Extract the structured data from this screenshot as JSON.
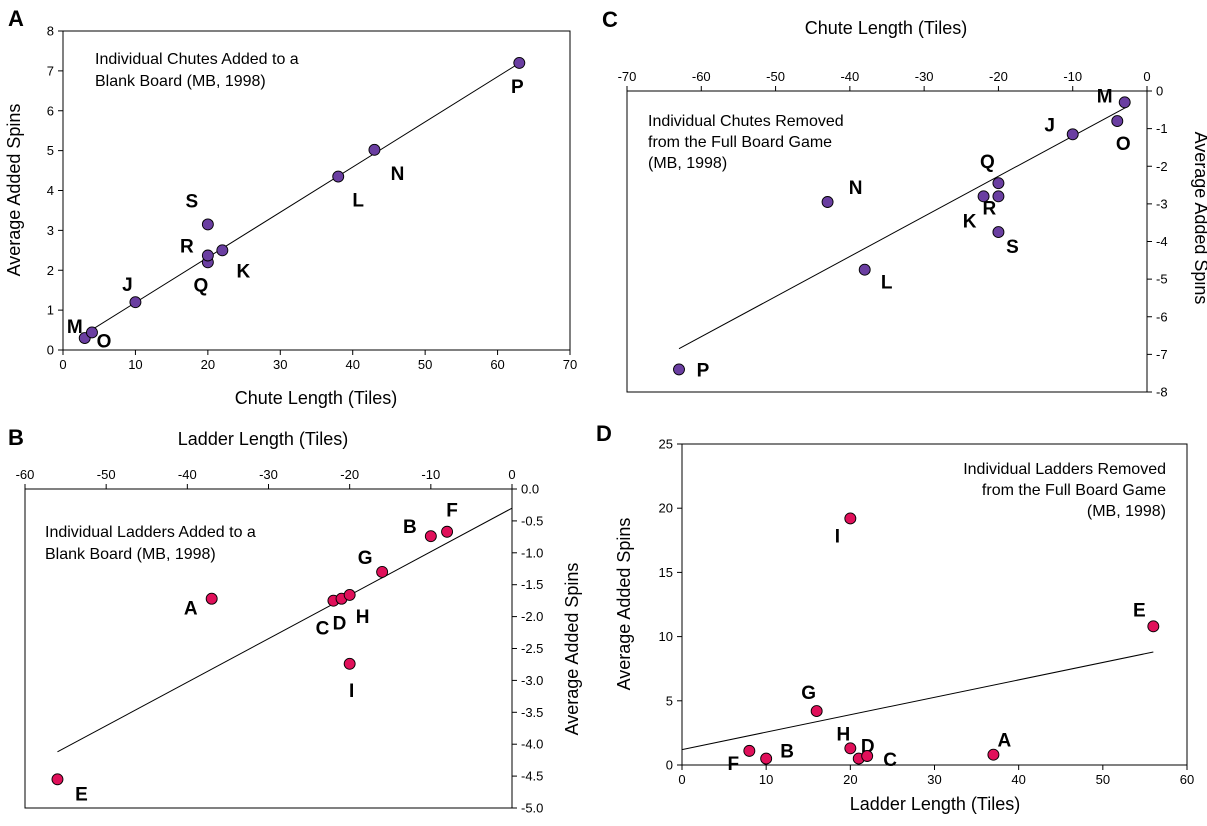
{
  "chart_data": [
    {
      "panel": "A",
      "type": "scatter",
      "annotation": [
        "Individual Chutes Added to a",
        "Blank Board (MB, 1998)"
      ],
      "xlabel": "Chute Length (Tiles)",
      "ylabel": "Average Added Spins",
      "x_axis_position": "bottom",
      "y_axis_position": "left",
      "xlim": [
        0,
        70
      ],
      "ylim": [
        0,
        8
      ],
      "xticks": [
        0,
        10,
        20,
        30,
        40,
        50,
        60,
        70
      ],
      "yticks": [
        0,
        1,
        2,
        3,
        4,
        5,
        6,
        7,
        8
      ],
      "xtick_labels": [
        "0",
        "10",
        "20",
        "30",
        "40",
        "50",
        "60",
        "70"
      ],
      "ytick_labels": [
        "0",
        "1",
        "2",
        "3",
        "4",
        "5",
        "6",
        "7",
        "8"
      ],
      "marker_color": "#6a3ea1",
      "grid": false,
      "trendline": [
        [
          2.5,
          0.34
        ],
        [
          63.5,
          7.25
        ]
      ],
      "points": [
        {
          "label": "M",
          "x": 3,
          "y": 0.3
        },
        {
          "label": "O",
          "x": 4,
          "y": 0.44
        },
        {
          "label": "J",
          "x": 10,
          "y": 1.2
        },
        {
          "label": "Q",
          "x": 20,
          "y": 2.2
        },
        {
          "label": "R",
          "x": 20,
          "y": 2.37
        },
        {
          "label": "S",
          "x": 20,
          "y": 3.15
        },
        {
          "label": "K",
          "x": 22,
          "y": 2.5
        },
        {
          "label": "L",
          "x": 38,
          "y": 4.35
        },
        {
          "label": "N",
          "x": 43,
          "y": 5.02
        },
        {
          "label": "P",
          "x": 63,
          "y": 7.2
        }
      ]
    },
    {
      "panel": "C",
      "type": "scatter",
      "annotation": [
        "Individual Chutes Removed",
        "from the Full Board Game",
        "(MB, 1998)"
      ],
      "xlabel": "Chute Length (Tiles)",
      "ylabel": "Average Added Spins",
      "x_axis_position": "top",
      "y_axis_position": "right",
      "xlim": [
        -70,
        0
      ],
      "ylim": [
        -8,
        0
      ],
      "xticks": [
        -70,
        -60,
        -50,
        -40,
        -30,
        -20,
        -10,
        0
      ],
      "yticks": [
        0,
        -1,
        -2,
        -3,
        -4,
        -5,
        -6,
        -7,
        -8
      ],
      "xtick_labels": [
        "-70",
        "-60",
        "-50",
        "-40",
        "-30",
        "-20",
        "-10",
        "0"
      ],
      "ytick_labels": [
        "0",
        "-1",
        "-2",
        "-3",
        "-4",
        "-5",
        "-6",
        "-7",
        "-8"
      ],
      "marker_color": "#6a3ea1",
      "grid": false,
      "trendline": [
        [
          -63,
          -6.85
        ],
        [
          -2.5,
          -0.4
        ]
      ],
      "points": [
        {
          "label": "M",
          "x": -3,
          "y": -0.3
        },
        {
          "label": "O",
          "x": -4,
          "y": -0.8
        },
        {
          "label": "J",
          "x": -10,
          "y": -1.15
        },
        {
          "label": "Q",
          "x": -20,
          "y": -2.45
        },
        {
          "label": "R",
          "x": -20,
          "y": -2.8
        },
        {
          "label": "K",
          "x": -22,
          "y": -2.8
        },
        {
          "label": "S",
          "x": -20,
          "y": -3.75
        },
        {
          "label": "N",
          "x": -43,
          "y": -2.95
        },
        {
          "label": "L",
          "x": -38,
          "y": -4.75
        },
        {
          "label": "P",
          "x": -63,
          "y": -7.4
        }
      ]
    },
    {
      "panel": "B",
      "type": "scatter",
      "annotation": [
        "Individual Ladders Added to a",
        "Blank Board (MB, 1998)"
      ],
      "xlabel": "Ladder Length (Tiles)",
      "ylabel": "Average Added Spins",
      "x_axis_position": "top",
      "y_axis_position": "right",
      "xlim": [
        -60,
        0
      ],
      "ylim": [
        -5,
        0
      ],
      "xticks": [
        -60,
        -50,
        -40,
        -30,
        -20,
        -10,
        0
      ],
      "yticks": [
        0,
        -0.5,
        -1,
        -1.5,
        -2,
        -2.5,
        -3,
        -3.5,
        -4,
        -4.5,
        -5
      ],
      "xtick_labels": [
        "-60",
        "-50",
        "-40",
        "-30",
        "-20",
        "-10",
        "0"
      ],
      "ytick_labels": [
        "0.0",
        "-0.5",
        "-1.0",
        "-1.5",
        "-2.0",
        "-2.5",
        "-3.0",
        "-3.5",
        "-4.0",
        "-4.5",
        "-5.0"
      ],
      "marker_color": "#e0105a",
      "grid": false,
      "trendline": [
        [
          -56,
          -4.12
        ],
        [
          0,
          -0.3
        ]
      ],
      "points": [
        {
          "label": "A",
          "x": -37,
          "y": -1.72
        },
        {
          "label": "B",
          "x": -10,
          "y": -0.74
        },
        {
          "label": "F",
          "x": -8,
          "y": -0.67
        },
        {
          "label": "G",
          "x": -16,
          "y": -1.3
        },
        {
          "label": "C",
          "x": -22,
          "y": -1.75
        },
        {
          "label": "D",
          "x": -21,
          "y": -1.72
        },
        {
          "label": "H",
          "x": -20,
          "y": -1.66
        },
        {
          "label": "I",
          "x": -20,
          "y": -2.74
        },
        {
          "label": "E",
          "x": -56,
          "y": -4.55
        }
      ]
    },
    {
      "panel": "D",
      "type": "scatter",
      "annotation": [
        "Individual Ladders Removed",
        "from the Full Board Game",
        "(MB, 1998)"
      ],
      "xlabel": "Ladder Length (Tiles)",
      "ylabel": "Average Added Spins",
      "x_axis_position": "bottom",
      "y_axis_position": "left",
      "xlim": [
        0,
        60
      ],
      "ylim": [
        0,
        25
      ],
      "xticks": [
        0,
        10,
        20,
        30,
        40,
        50,
        60
      ],
      "yticks": [
        0,
        5,
        10,
        15,
        20,
        25
      ],
      "xtick_labels": [
        "0",
        "10",
        "20",
        "30",
        "40",
        "50",
        "60"
      ],
      "ytick_labels": [
        "0",
        "5",
        "10",
        "15",
        "20",
        "25"
      ],
      "marker_color": "#e0105a",
      "grid": false,
      "trendline": [
        [
          0,
          1.2
        ],
        [
          56,
          8.8
        ]
      ],
      "points": [
        {
          "label": "F",
          "x": 8,
          "y": 1.1
        },
        {
          "label": "B",
          "x": 10,
          "y": 0.5
        },
        {
          "label": "G",
          "x": 16,
          "y": 4.2
        },
        {
          "label": "H",
          "x": 20,
          "y": 1.3
        },
        {
          "label": "D",
          "x": 21,
          "y": 0.5
        },
        {
          "label": "C",
          "x": 22,
          "y": 0.7
        },
        {
          "label": "I",
          "x": 20,
          "y": 19.2
        },
        {
          "label": "A",
          "x": 37,
          "y": 0.8
        },
        {
          "label": "E",
          "x": 56,
          "y": 10.8
        }
      ]
    }
  ]
}
